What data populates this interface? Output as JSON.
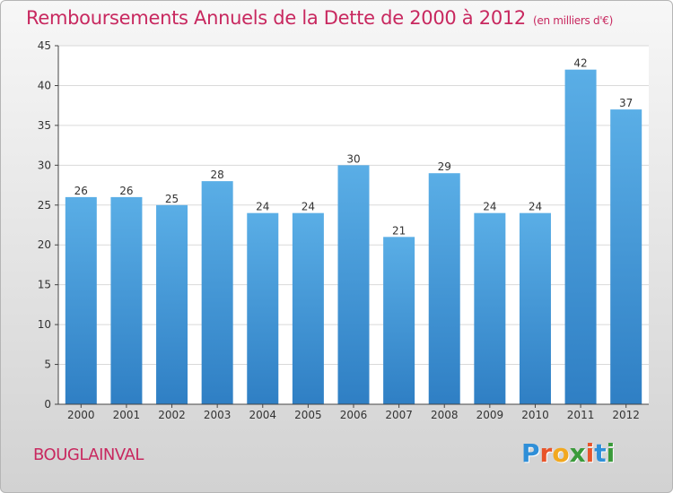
{
  "title": "Remboursements Annuels de la Dette de 2000 à 2012",
  "subtitle": "(en milliers d'€)",
  "city": "BOUGLAINVAL",
  "logo": {
    "text": "Proxiti",
    "letters": [
      {
        "char": "P",
        "color": "#2f8fd8"
      },
      {
        "char": "r",
        "color": "#e8542a"
      },
      {
        "char": "o",
        "color": "#f2a81f"
      },
      {
        "char": "x",
        "color": "#3a9a3a"
      },
      {
        "char": "i",
        "color": "#e8542a"
      },
      {
        "char": "t",
        "color": "#2f8fd8"
      },
      {
        "char": "i",
        "color": "#3a9a3a"
      }
    ]
  },
  "colors": {
    "bar_top": "#5aaee6",
    "bar_bottom": "#2f7fc4",
    "axis": "#444444",
    "grid": "#d9d9d9",
    "text": "#333333",
    "accent": "#c8285f"
  },
  "chart_data": {
    "type": "bar",
    "title": "Remboursements Annuels de la Dette de 2000 à 2012",
    "subtitle": "(en milliers d'€)",
    "categories": [
      "2000",
      "2001",
      "2002",
      "2003",
      "2004",
      "2005",
      "2006",
      "2007",
      "2008",
      "2009",
      "2010",
      "2011",
      "2012"
    ],
    "values": [
      26,
      26,
      25,
      28,
      24,
      24,
      30,
      21,
      29,
      24,
      24,
      42,
      37
    ],
    "ylim": [
      0,
      45
    ],
    "yticks": [
      0,
      5,
      10,
      15,
      20,
      25,
      30,
      35,
      40,
      45
    ],
    "grid": true,
    "data_labels": true
  }
}
